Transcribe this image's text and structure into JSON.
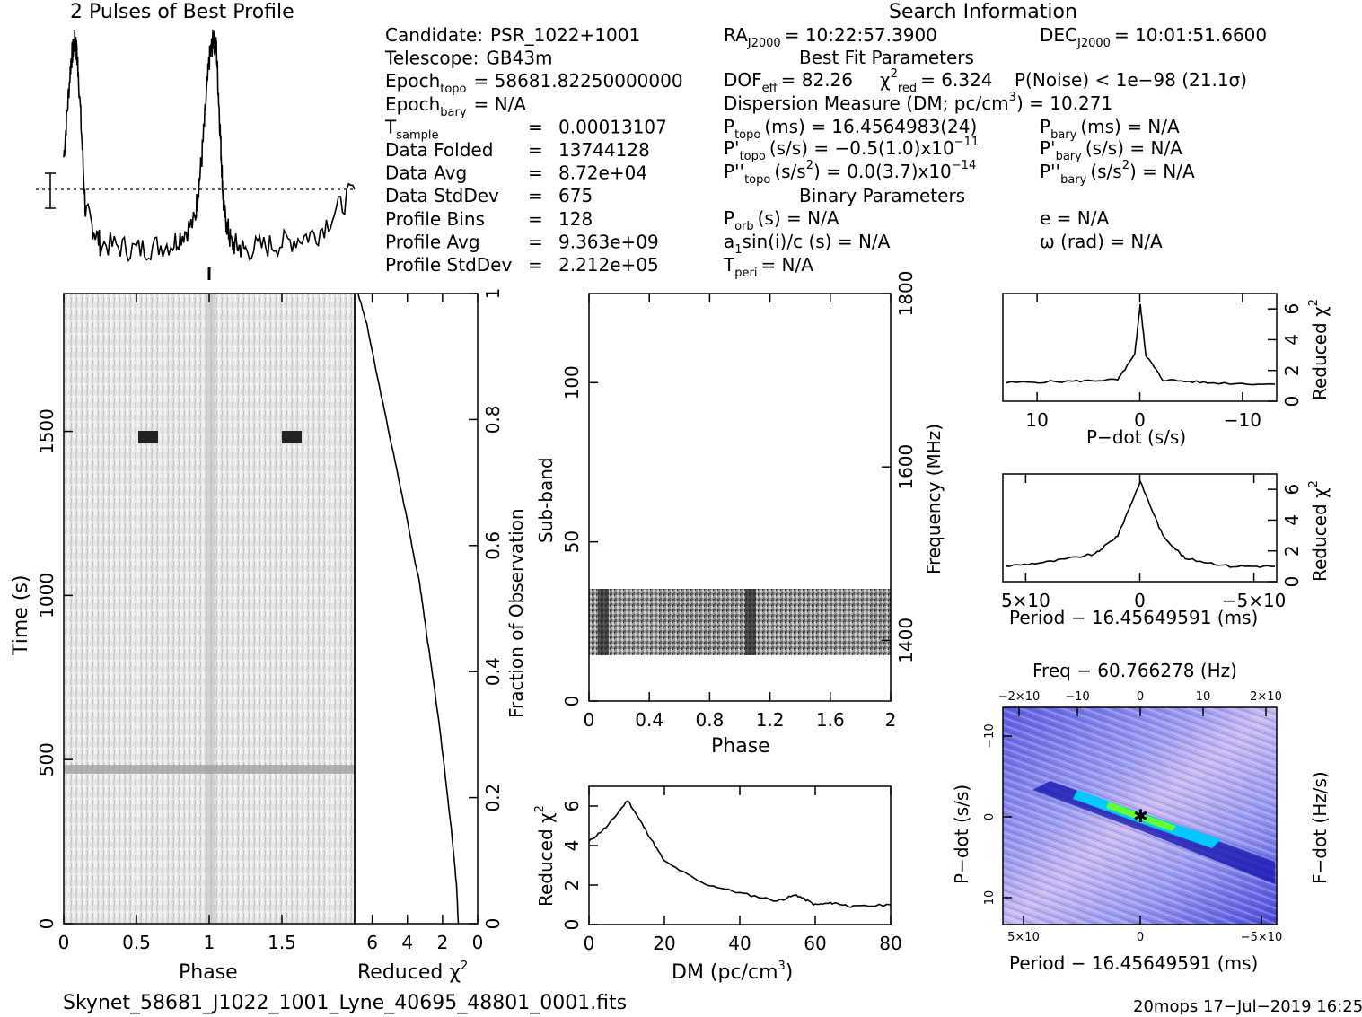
{
  "header": {
    "profile_title": "2 Pulses of Best Profile",
    "search_title": "Search Information"
  },
  "info_left": [
    {
      "label": "Candidate:",
      "value": "PSR_1022+1001"
    },
    {
      "label": "Telescope:",
      "value": "GB43m"
    },
    {
      "label": "Epoch",
      "sub": "topo",
      "value": "= 58681.82250000000"
    },
    {
      "label": "Epoch",
      "sub": "bary",
      "value": "= N/A"
    },
    {
      "label": "T",
      "sub": "sample",
      "value": "=",
      "value2": "0.00013107"
    },
    {
      "label": "Data Folded",
      "value": "=",
      "value2": "13744128"
    },
    {
      "label": "Data Avg",
      "value": "=",
      "value2": "8.72e+04"
    },
    {
      "label": "Data StdDev",
      "value": "=",
      "value2": "675"
    },
    {
      "label": "Profile Bins",
      "value": "=",
      "value2": "128"
    },
    {
      "label": "Profile Avg",
      "value": "=",
      "value2": "9.363e+09"
    },
    {
      "label": "Profile StdDev",
      "value": "=",
      "value2": "2.212e+05"
    }
  ],
  "info_right": {
    "ra": {
      "label": "RA",
      "sub": "J2000",
      "value": "= 10:22:57.3900"
    },
    "dec": {
      "label": "DEC",
      "sub": "J2000",
      "value": "= 10:01:51.6600"
    },
    "best_fit_title": "Best Fit Parameters",
    "dof": {
      "label": "DOF",
      "sub": "eff",
      "value": "= 82.26"
    },
    "chi2": {
      "label": "χ",
      "sup": "2",
      "sub": "red",
      "value": "= 6.324"
    },
    "pnoise": "P(Noise) < 1e−98   (21.1σ)",
    "dm": "Dispersion Measure (DM; pc/cm",
    "dm_sup": "3",
    "dm_value": ") = 10.271",
    "ptopo": {
      "label": "P",
      "sub": "topo",
      "value": "(ms)  =  16.4564983(24)"
    },
    "pbary": {
      "label": "P",
      "sub": "bary",
      "value": "(ms) = N/A"
    },
    "pdtopo": {
      "label": "P'",
      "sub": "topo",
      "value": "(s/s) = −0.5(1.0)x10",
      "sup": "−11"
    },
    "pdbary": {
      "label": "P'",
      "sub": "bary",
      "value": "(s/s) = N/A"
    },
    "pddtopo": {
      "label": "P''",
      "sub": "topo",
      "value": "(s/s",
      "sup2": "2",
      "value2": ") = 0.0(3.7)x10",
      "sup": "−14"
    },
    "pddbary": {
      "label": "P''",
      "sub": "bary",
      "value": "(s/s",
      "sup2": "2",
      "value2": ") = N/A"
    },
    "binary_title": "Binary Parameters",
    "porb": {
      "label": "P",
      "sub": "orb",
      "value": "(s) = N/A"
    },
    "ecc": "e = N/A",
    "a1": {
      "label": "a",
      "sub": "1",
      "value": "sin(i)/c (s) = N/A"
    },
    "omega": "ω (rad) = N/A",
    "tperi": {
      "label": "T",
      "sub": "peri",
      "value": "= N/A"
    }
  },
  "labels": {
    "time_axis": "Time (s)",
    "phase": "Phase",
    "reduced_chi2": "Reduced χ",
    "chi2_sup": "2",
    "fraction_obs": "Fraction of Observation",
    "subband": "Sub-band",
    "frequency": "Frequency (MHz)",
    "dm_axis": "DM (pc/cm",
    "dm_axis_sup": "3",
    "dm_axis_end": ")",
    "pdot_axis": "P−dot (s/s)",
    "period_axis": "Period − 16.45649591 (ms)",
    "freq_title": "Freq − 60.766278 (Hz)",
    "fdot_axis": "F−dot (Hz/s)"
  },
  "footer": {
    "filename": "Skynet_58681_J1022_1001_Lyne_40695_48801_0001.fits",
    "stamp": "20mops  17−Jul−2019 16:25"
  },
  "ticks": {
    "time_y": [
      "0",
      "500",
      "1000",
      "1500"
    ],
    "phase_x": [
      "0",
      "0.5",
      "1",
      "1.5"
    ],
    "redchi_x": [
      "6",
      "4",
      "2",
      "0"
    ],
    "frac_y": [
      "0",
      "0.2",
      "0.4",
      "0.6",
      "0.8",
      "1"
    ],
    "subband_y": [
      "0",
      "50",
      "100"
    ],
    "phase2_x": [
      "0",
      "0.4",
      "0.8",
      "1.2",
      "1.6",
      "2"
    ],
    "freq_y": [
      "1400",
      "1600",
      "1800"
    ],
    "chi_small_y": [
      "0",
      "2",
      "4",
      "6"
    ],
    "dm_x": [
      "0",
      "20",
      "40",
      "60",
      "80"
    ],
    "pdot_x": [
      "10",
      "0",
      "−10"
    ],
    "period_x": [
      "5×10",
      "0",
      "−5×10"
    ],
    "freq_top": [
      "−2×10",
      "−10",
      "0",
      "10",
      "2×10"
    ]
  },
  "chart_data": [
    {
      "type": "line",
      "title": "2 Pulses of Best Profile",
      "description_values": "profile intensity vs phase, two cycles",
      "x": [
        0.0,
        0.05,
        0.08,
        0.1,
        0.15,
        0.25,
        0.5,
        0.75,
        0.9,
        0.95,
        1.0,
        1.03,
        1.05,
        1.08,
        1.1,
        1.15,
        1.25,
        1.5,
        1.75,
        2.0
      ],
      "y": [
        0.45,
        0.9,
        1.0,
        0.85,
        0.2,
        0.05,
        0.02,
        0.05,
        0.15,
        0.45,
        0.9,
        1.0,
        0.95,
        0.5,
        0.2,
        0.05,
        0.02,
        0.05,
        0.1,
        0.3
      ]
    },
    {
      "type": "line",
      "xlabel": "Reduced χ2",
      "ylabel": "Fraction of Observation",
      "x": [
        6.8,
        6.3,
        5.8,
        5.2,
        4.6,
        4.0,
        3.6,
        3.3,
        3.1,
        2.7,
        2.3,
        1.9,
        1.5,
        1.2,
        1.1
      ],
      "y": [
        1.0,
        0.95,
        0.88,
        0.8,
        0.72,
        0.64,
        0.58,
        0.54,
        0.5,
        0.42,
        0.34,
        0.25,
        0.15,
        0.06,
        0.0
      ],
      "xlim": [
        7,
        0
      ],
      "ylim": [
        0,
        1
      ]
    },
    {
      "type": "line",
      "xlabel": "DM (pc/cm3)",
      "ylabel": "Reduced χ2",
      "x": [
        0,
        5,
        10.3,
        15,
        20,
        30,
        40,
        50,
        55,
        60,
        65,
        70,
        80
      ],
      "y": [
        4.2,
        5.0,
        6.3,
        4.8,
        3.2,
        2.1,
        1.6,
        1.2,
        1.5,
        1.0,
        1.1,
        0.9,
        1.0
      ],
      "xlim": [
        0,
        80
      ],
      "ylim": [
        0,
        7
      ]
    },
    {
      "type": "line",
      "xlabel": "P-dot (s/s)",
      "ylabel": "Reduced χ2",
      "x": [
        -12,
        -6,
        -2,
        -0.5,
        0,
        0.5,
        2,
        6,
        12
      ],
      "y": [
        1.2,
        1.3,
        1.4,
        3.0,
        6.3,
        3.0,
        1.4,
        1.2,
        1.1
      ],
      "ylim": [
        0,
        7
      ]
    },
    {
      "type": "line",
      "xlabel": "Period − 16.45649591 (ms)",
      "ylabel": "Reduced χ2",
      "x": [
        6,
        4,
        2,
        1,
        0,
        -1,
        -2,
        -4,
        -6
      ],
      "y": [
        1.0,
        1.3,
        1.8,
        3.0,
        6.5,
        3.0,
        1.5,
        1.0,
        1.0
      ],
      "ylim": [
        0,
        7
      ]
    }
  ]
}
